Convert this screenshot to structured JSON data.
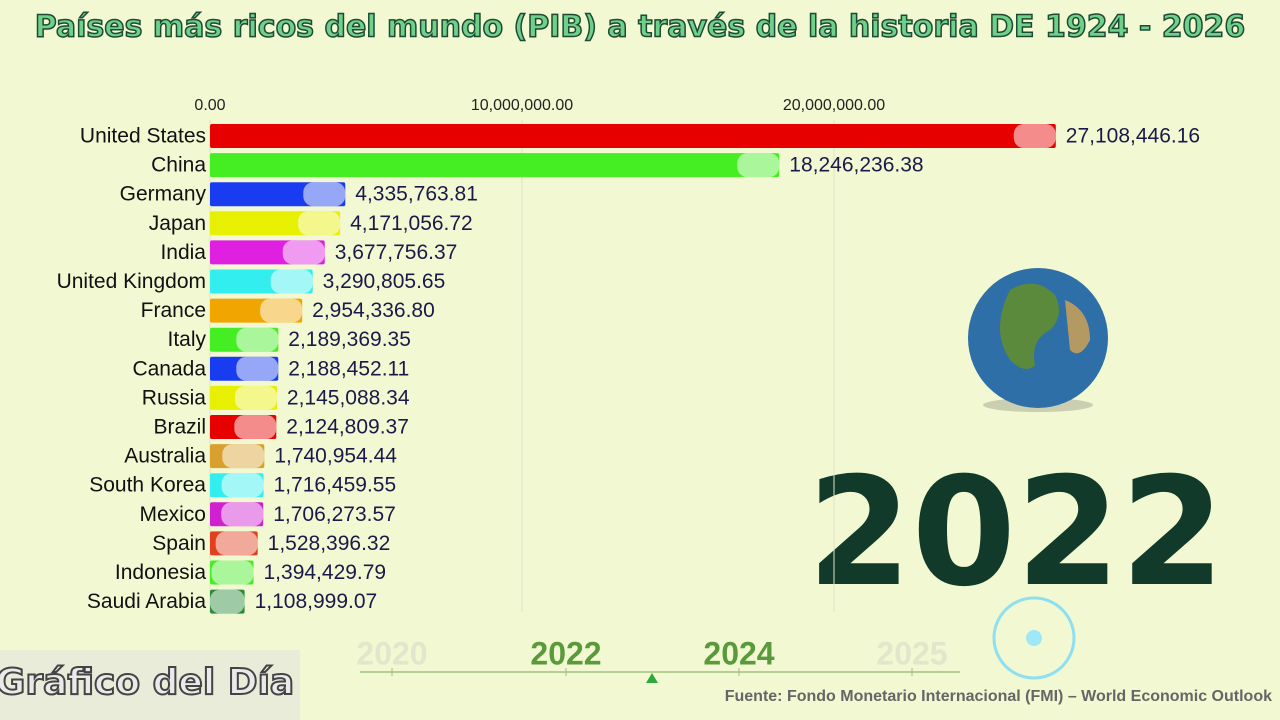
{
  "chart_data": {
    "type": "bar",
    "orientation": "horizontal",
    "title": "Países más ricos del mundo (PIB) a través de la historia DE 1924 - 2026",
    "categories": [
      "United States",
      "China",
      "Germany",
      "Japan",
      "India",
      "United Kingdom",
      "France",
      "Italy",
      "Canada",
      "Russia",
      "Brazil",
      "Australia",
      "South Korea",
      "Mexico",
      "Spain",
      "Indonesia",
      "Saudi Arabia"
    ],
    "values": [
      27108446.16,
      18246236.38,
      4335763.81,
      4171056.72,
      3677756.37,
      3290805.65,
      2954336.8,
      2189369.35,
      2188452.11,
      2145088.34,
      2124809.37,
      1740954.44,
      1716459.55,
      1706273.57,
      1528396.32,
      1394429.79,
      1108999.07
    ],
    "value_labels": [
      "27,108,446.16",
      "18,246,236.38",
      "4,335,763.81",
      "4,171,056.72",
      "3,677,756.37",
      "3,290,805.65",
      "2,954,336.80",
      "2,189,369.35",
      "2,188,452.11",
      "2,145,088.34",
      "2,124,809.37",
      "1,740,954.44",
      "1,716,459.55",
      "1,706,273.57",
      "1,528,396.32",
      "1,394,429.79",
      "1,108,999.07"
    ],
    "colors": [
      "#e60000",
      "#44ee22",
      "#1a3cf0",
      "#e6f000",
      "#e020e0",
      "#33eeee",
      "#f0a500",
      "#44ee22",
      "#1a3cf0",
      "#e6f000",
      "#e60000",
      "#d9a030",
      "#33eeee",
      "#d020d0",
      "#e04020",
      "#44ee22",
      "#2a8a3a"
    ],
    "xlim": [
      0,
      30000000
    ],
    "xticks": [
      {
        "value": 0,
        "label": "0.00"
      },
      {
        "value": 10000000,
        "label": "10,000,000.00"
      },
      {
        "value": 20000000,
        "label": "20,000,000.00"
      }
    ],
    "grid": true,
    "year": "2022",
    "timeline": [
      "2020",
      "2022",
      "2024",
      "2025"
    ],
    "source": "Fuente: Fondo Monetario Internacional (FMI) – World Economic Outlook",
    "watermark": "Gráfico del Día"
  }
}
